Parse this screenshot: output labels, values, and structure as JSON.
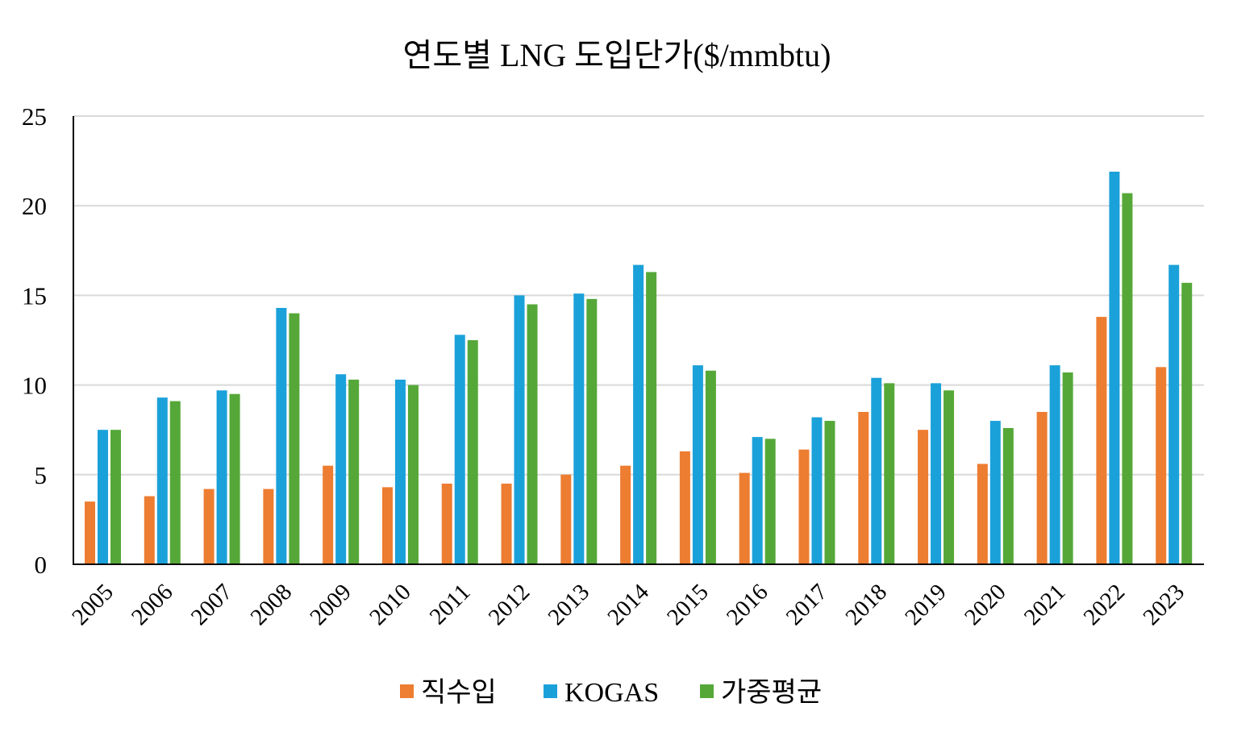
{
  "chart_data": {
    "type": "bar",
    "title": "연도별 LNG 도입단가($/mmbtu)",
    "xlabel": "",
    "ylabel": "",
    "ylim": [
      0,
      25
    ],
    "yticks": [
      0,
      5,
      10,
      15,
      20,
      25
    ],
    "grid": true,
    "legend_position": "bottom",
    "categories": [
      "2005",
      "2006",
      "2007",
      "2008",
      "2009",
      "2010",
      "2011",
      "2012",
      "2013",
      "2014",
      "2015",
      "2016",
      "2017",
      "2018",
      "2019",
      "2020",
      "2021",
      "2022",
      "2023"
    ],
    "series": [
      {
        "name": "직수입",
        "color": "#ED7D31",
        "values": [
          3.5,
          3.8,
          4.2,
          4.2,
          5.5,
          4.3,
          4.5,
          4.5,
          5.0,
          5.5,
          6.3,
          5.1,
          6.4,
          8.5,
          7.5,
          5.6,
          8.5,
          13.8,
          11.0
        ]
      },
      {
        "name": "KOGAS",
        "color": "#1BA1DA",
        "values": [
          7.5,
          9.3,
          9.7,
          14.3,
          10.6,
          10.3,
          12.8,
          15.0,
          15.1,
          16.7,
          11.1,
          7.1,
          8.2,
          10.4,
          10.1,
          8.0,
          11.1,
          21.9,
          16.7
        ]
      },
      {
        "name": "가중평균",
        "color": "#55A838",
        "values": [
          7.5,
          9.1,
          9.5,
          14.0,
          10.3,
          10.0,
          12.5,
          14.5,
          14.8,
          16.3,
          10.8,
          7.0,
          8.0,
          10.1,
          9.7,
          7.6,
          10.7,
          20.7,
          15.7
        ]
      }
    ]
  }
}
